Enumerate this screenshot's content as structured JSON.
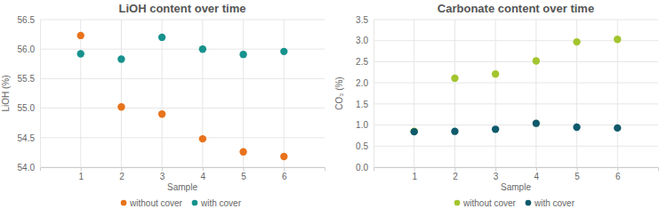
{
  "chart_data": [
    {
      "type": "scatter",
      "title": "LiOH content over time",
      "x_label": "Sample",
      "y_label": "LiOH (%)",
      "x": [
        1,
        2,
        3,
        4,
        5,
        6
      ],
      "series": [
        {
          "name": "without cover",
          "color": "#e8731c",
          "values": [
            56.23,
            55.02,
            54.9,
            54.48,
            54.26,
            54.18
          ]
        },
        {
          "name": "with cover",
          "color": "#17928d",
          "values": [
            55.92,
            55.83,
            56.2,
            56.0,
            55.91,
            55.96
          ]
        }
      ],
      "xlim": [
        0,
        7
      ],
      "xticks": [
        1,
        2,
        3,
        4,
        5,
        6
      ],
      "ylim": [
        54,
        56.5
      ],
      "yticks": [
        {
          "value": 54,
          "label": "54.0"
        },
        54.5,
        {
          "value": 55,
          "label": "55.0"
        },
        55.5,
        {
          "value": 56,
          "label": "56.0"
        },
        56.5
      ],
      "grid": true,
      "legend": "bottom",
      "marker": "circle"
    },
    {
      "type": "scatter",
      "title": "Carbonate content over time",
      "x_label": "Sample",
      "y_label": "CO₃ (%)",
      "x": [
        1,
        2,
        3,
        4,
        5,
        6
      ],
      "series": [
        {
          "name": "without cover",
          "color": "#a3c52e",
          "values": [
            0.85,
            2.11,
            2.21,
            2.52,
            2.97,
            3.03
          ]
        },
        {
          "name": "with cover",
          "color": "#0f5a6b",
          "values": [
            0.84,
            0.85,
            0.9,
            1.04,
            0.95,
            0.93
          ]
        }
      ],
      "xlim": [
        0,
        7
      ],
      "xticks": [
        1,
        2,
        3,
        4,
        5,
        6
      ],
      "ylim": [
        0,
        3.5
      ],
      "yticks": [
        {
          "value": 0,
          "label": "0.0"
        },
        0.5,
        {
          "value": 1,
          "label": "1.0"
        },
        1.5,
        {
          "value": 2,
          "label": "2.0"
        },
        2.5,
        {
          "value": 3,
          "label": "3.0"
        },
        3.5
      ],
      "grid": true,
      "legend": "bottom",
      "marker": "circle"
    }
  ]
}
